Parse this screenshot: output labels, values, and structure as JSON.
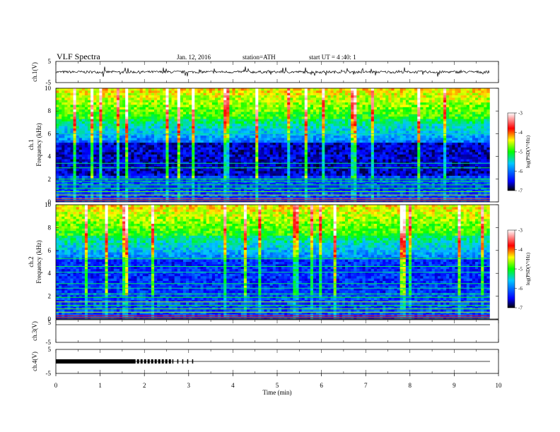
{
  "header": {
    "title": "VLF  Spectra",
    "date": "Jan. 12, 2016",
    "station": "station=ATH",
    "start": "start  UT  =   4 :40: 1"
  },
  "colors": {
    "colormap": [
      "#000000",
      "#0000ff",
      "#00ff00",
      "#ffff00",
      "#ff0000",
      "#ffffff"
    ]
  },
  "chart_data": [
    {
      "type": "line",
      "name": "ch1-waveform",
      "ylabel": "ch.1(V)",
      "ylim": [
        -5,
        5
      ],
      "yticks": [
        "5",
        "-5"
      ],
      "x_range_min": [
        0,
        9.8
      ],
      "baseline_v": 0.0,
      "noise_amplitude_v": 0.6,
      "spike_amplitude_v": 2.5
    },
    {
      "type": "heatmap",
      "name": "ch1-spectrogram",
      "ylabel_channel": "ch.1",
      "ylabel": "Frequency  (kHz)",
      "ylim": [
        0,
        10
      ],
      "yticks": [
        "0",
        "2",
        "4",
        "6",
        "8",
        "10"
      ],
      "x_range_min": [
        0,
        9.8
      ],
      "colorbar_label": "log(PSD(V²/Hz)",
      "colorbar_range": [
        -7,
        -3
      ],
      "colorbar_ticks": [
        "-3",
        "-4",
        "-5",
        "-6",
        "-7"
      ]
    },
    {
      "type": "heatmap",
      "name": "ch2-spectrogram",
      "ylabel_channel": "ch.2",
      "ylabel": "Frequency  (kHz)",
      "ylim": [
        0,
        10
      ],
      "yticks": [
        "0",
        "2",
        "4",
        "6",
        "8",
        "10"
      ],
      "x_range_min": [
        0,
        9.8
      ],
      "colorbar_label": "log(PSD(V²/Hz)",
      "colorbar_range": [
        -7,
        -3
      ],
      "colorbar_ticks": [
        "-3",
        "-4",
        "-5",
        "-6",
        "-7"
      ]
    },
    {
      "type": "line",
      "name": "ch3-waveform",
      "ylabel": "ch.3(V)",
      "ylim": [
        -5,
        5
      ],
      "yticks": [
        "5",
        "-5"
      ],
      "values_v": 0
    },
    {
      "type": "line",
      "name": "ch4-waveform",
      "ylabel": "ch.4(V)",
      "ylim": [
        -5,
        5
      ],
      "yticks": [
        "5",
        "-5"
      ],
      "values_v": 0,
      "marker_interval_min": [
        0,
        3.15
      ]
    }
  ],
  "x_axis": {
    "xlabel": "Time  (min)",
    "xlim": [
      0,
      10
    ],
    "ticks": [
      "0",
      "1",
      "2",
      "3",
      "4",
      "5",
      "6",
      "7",
      "8",
      "9",
      "10"
    ]
  }
}
